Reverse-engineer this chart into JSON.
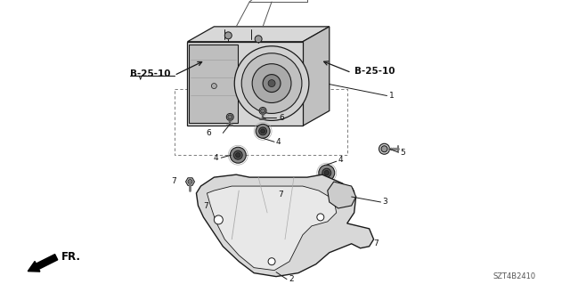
{
  "bg_color": "#ffffff",
  "part_number": "SZT4B2410",
  "fr_label": "FR.",
  "line_color": "#1a1a1a",
  "gray_fill": "#cccccc",
  "dark_gray": "#888888",
  "mid_gray": "#aaaaaa",
  "light_gray": "#e0e0e0",
  "labels": {
    "B25_10_left": "B-25-10",
    "B25_10_right": "B-25-10",
    "l1": "1",
    "l2": "2",
    "l3": "3",
    "l4": "4",
    "l5": "5",
    "l6": "6",
    "l7": "7"
  }
}
